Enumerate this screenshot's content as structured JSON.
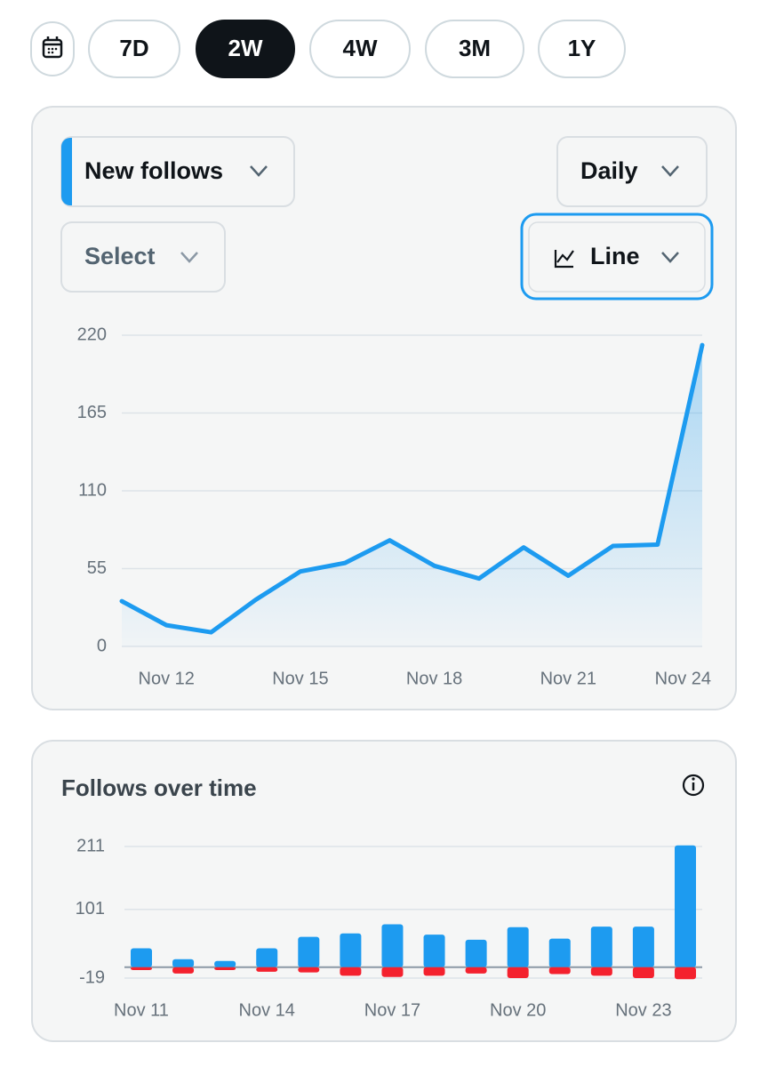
{
  "range_buttons": [
    {
      "label": "7D"
    },
    {
      "label": "2W",
      "selected": true
    },
    {
      "label": "4W"
    },
    {
      "label": "3M"
    },
    {
      "label": "1Y"
    }
  ],
  "controls": {
    "metric": "New follows",
    "interval": "Daily",
    "compare": "Select",
    "chart_style": "Line"
  },
  "chart_data": [
    {
      "type": "line",
      "categories": [
        null,
        "Nov 12",
        null,
        null,
        "Nov 15",
        null,
        null,
        "Nov 18",
        null,
        null,
        "Nov 21",
        null,
        null,
        "Nov 24"
      ],
      "series": [
        {
          "color": "#1d9bf0",
          "values": [
            32,
            15,
            10,
            33,
            53,
            59,
            75,
            57,
            48,
            70,
            50,
            71,
            72,
            213
          ]
        }
      ],
      "ylim": [
        0,
        220
      ],
      "yticks": [
        0,
        55,
        110,
        165,
        220
      ],
      "grid": true
    },
    {
      "type": "bar",
      "title": "Follows over time",
      "categories": [
        "Nov 11",
        null,
        null,
        "Nov 14",
        null,
        null,
        "Nov 17",
        null,
        null,
        "Nov 20",
        null,
        null,
        "Nov 23",
        null
      ],
      "series": [
        {
          "color": "#1d9bf0",
          "values": [
            33,
            14,
            11,
            33,
            53,
            59,
            75,
            57,
            48,
            70,
            50,
            71,
            71,
            213
          ]
        },
        {
          "color": "#f4212e",
          "values": [
            -5,
            -11,
            -5,
            -8,
            -9,
            -15,
            -17,
            -15,
            -11,
            -19,
            -12,
            -15,
            -19,
            -21
          ]
        }
      ],
      "ylim": [
        -19,
        211
      ],
      "yticks": [
        -19,
        101,
        211
      ],
      "grid": true
    }
  ]
}
